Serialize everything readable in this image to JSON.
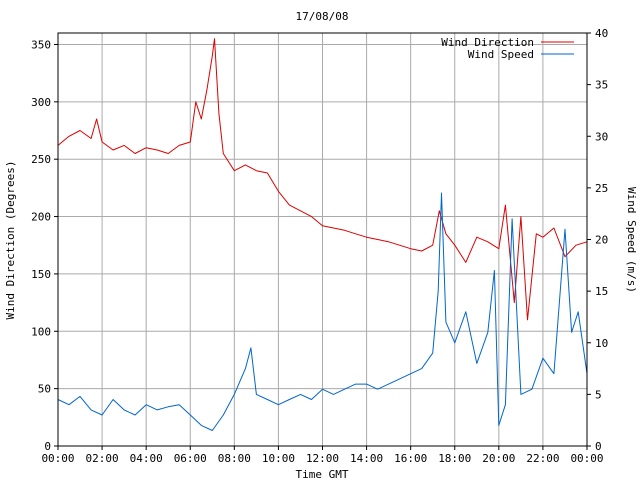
{
  "chart_data": {
    "type": "line",
    "title": "17/08/08",
    "xlabel": "Time GMT",
    "ylabel_left": "Wind Direction (Degrees)",
    "ylabel_right": "Wind Speed (m/s)",
    "x_range_hours": [
      0,
      24
    ],
    "x_tick_labels": [
      "00:00",
      "02:00",
      "04:00",
      "06:00",
      "08:00",
      "10:00",
      "12:00",
      "14:00",
      "16:00",
      "18:00",
      "20:00",
      "22:00",
      "00:00"
    ],
    "y_left_range": [
      0,
      360
    ],
    "y_left_ticks": [
      0,
      50,
      100,
      150,
      200,
      250,
      300,
      350
    ],
    "y_right_range": [
      0,
      40
    ],
    "y_right_ticks": [
      0,
      5,
      10,
      15,
      20,
      25,
      30,
      35,
      40
    ],
    "grid": true,
    "legend_position": "top-right",
    "series": [
      {
        "name": "Wind Direction",
        "axis": "left",
        "color": "#dd0000",
        "points": [
          [
            0.0,
            262
          ],
          [
            0.5,
            270
          ],
          [
            1.0,
            275
          ],
          [
            1.5,
            268
          ],
          [
            1.75,
            285
          ],
          [
            2.0,
            265
          ],
          [
            2.5,
            258
          ],
          [
            3.0,
            262
          ],
          [
            3.5,
            255
          ],
          [
            4.0,
            260
          ],
          [
            4.5,
            258
          ],
          [
            5.0,
            255
          ],
          [
            5.5,
            262
          ],
          [
            6.0,
            265
          ],
          [
            6.25,
            300
          ],
          [
            6.5,
            285
          ],
          [
            6.75,
            310
          ],
          [
            7.0,
            340
          ],
          [
            7.1,
            355
          ],
          [
            7.3,
            290
          ],
          [
            7.5,
            255
          ],
          [
            8.0,
            240
          ],
          [
            8.5,
            245
          ],
          [
            9.0,
            240
          ],
          [
            9.5,
            238
          ],
          [
            10.0,
            222
          ],
          [
            10.5,
            210
          ],
          [
            11.0,
            205
          ],
          [
            11.5,
            200
          ],
          [
            12.0,
            192
          ],
          [
            12.5,
            190
          ],
          [
            13.0,
            188
          ],
          [
            13.5,
            185
          ],
          [
            14.0,
            182
          ],
          [
            14.5,
            180
          ],
          [
            15.0,
            178
          ],
          [
            15.5,
            175
          ],
          [
            16.0,
            172
          ],
          [
            16.5,
            170
          ],
          [
            17.0,
            175
          ],
          [
            17.3,
            205
          ],
          [
            17.6,
            185
          ],
          [
            18.0,
            175
          ],
          [
            18.5,
            160
          ],
          [
            19.0,
            182
          ],
          [
            19.5,
            178
          ],
          [
            20.0,
            172
          ],
          [
            20.3,
            210
          ],
          [
            20.7,
            125
          ],
          [
            21.0,
            200
          ],
          [
            21.3,
            110
          ],
          [
            21.7,
            185
          ],
          [
            22.0,
            182
          ],
          [
            22.5,
            190
          ],
          [
            23.0,
            165
          ],
          [
            23.5,
            175
          ],
          [
            24.0,
            178
          ]
        ]
      },
      {
        "name": "Wind Speed",
        "axis": "right",
        "color": "#0066cc",
        "points": [
          [
            0.0,
            4.5
          ],
          [
            0.5,
            4.0
          ],
          [
            1.0,
            4.8
          ],
          [
            1.5,
            3.5
          ],
          [
            2.0,
            3.0
          ],
          [
            2.5,
            4.5
          ],
          [
            3.0,
            3.5
          ],
          [
            3.5,
            3.0
          ],
          [
            4.0,
            4.0
          ],
          [
            4.5,
            3.5
          ],
          [
            5.0,
            3.8
          ],
          [
            5.5,
            4.0
          ],
          [
            6.0,
            3.0
          ],
          [
            6.5,
            2.0
          ],
          [
            7.0,
            1.5
          ],
          [
            7.5,
            3.0
          ],
          [
            8.0,
            5.0
          ],
          [
            8.5,
            7.5
          ],
          [
            8.75,
            9.5
          ],
          [
            9.0,
            5.0
          ],
          [
            9.5,
            4.5
          ],
          [
            10.0,
            4.0
          ],
          [
            10.5,
            4.5
          ],
          [
            11.0,
            5.0
          ],
          [
            11.5,
            4.5
          ],
          [
            12.0,
            5.5
          ],
          [
            12.5,
            5.0
          ],
          [
            13.0,
            5.5
          ],
          [
            13.5,
            6.0
          ],
          [
            14.0,
            6.0
          ],
          [
            14.5,
            5.5
          ],
          [
            15.0,
            6.0
          ],
          [
            15.5,
            6.5
          ],
          [
            16.0,
            7.0
          ],
          [
            16.5,
            7.5
          ],
          [
            17.0,
            9.0
          ],
          [
            17.25,
            15.0
          ],
          [
            17.4,
            24.5
          ],
          [
            17.6,
            12.0
          ],
          [
            18.0,
            10.0
          ],
          [
            18.5,
            13.0
          ],
          [
            19.0,
            8.0
          ],
          [
            19.5,
            11.0
          ],
          [
            19.8,
            17.0
          ],
          [
            20.0,
            2.0
          ],
          [
            20.3,
            4.0
          ],
          [
            20.6,
            22.0
          ],
          [
            21.0,
            5.0
          ],
          [
            21.5,
            5.5
          ],
          [
            22.0,
            8.5
          ],
          [
            22.5,
            7.0
          ],
          [
            23.0,
            21.0
          ],
          [
            23.3,
            11.0
          ],
          [
            23.6,
            13.0
          ],
          [
            24.0,
            7.0
          ]
        ]
      }
    ]
  }
}
